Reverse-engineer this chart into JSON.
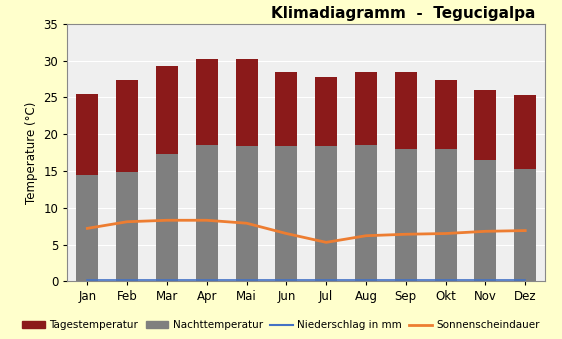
{
  "months": [
    "Jan",
    "Feb",
    "Mar",
    "Apr",
    "Mai",
    "Jun",
    "Jul",
    "Aug",
    "Sep",
    "Okt",
    "Nov",
    "Dez"
  ],
  "nacht_temp": [
    14.5,
    14.8,
    17.3,
    18.5,
    18.4,
    18.4,
    18.4,
    18.5,
    18.0,
    18.0,
    16.5,
    15.2
  ],
  "tages_temp": [
    25.5,
    27.4,
    29.3,
    30.2,
    30.2,
    28.5,
    27.8,
    28.5,
    28.5,
    27.3,
    26.0,
    25.3
  ],
  "niederschlag": [
    0.2,
    0.2,
    0.2,
    0.2,
    0.2,
    0.2,
    0.2,
    0.2,
    0.2,
    0.2,
    0.2,
    0.2
  ],
  "sonnenschein": [
    7.2,
    8.1,
    8.3,
    8.3,
    7.9,
    6.5,
    5.3,
    6.2,
    6.4,
    6.5,
    6.8,
    6.9
  ],
  "bar_color_nacht": "#7F7F7F",
  "bar_color_tages": "#8B1A1A",
  "line_color_niederschlag": "#4472C4",
  "line_color_sonnenschein": "#ED7D31",
  "title": "Klimadiagramm  -  Tegucigalpa",
  "ylabel": "Temperature (°C)",
  "ylim": [
    0,
    35
  ],
  "yticks": [
    0,
    5,
    10,
    15,
    20,
    25,
    30,
    35
  ],
  "background_color": "#FFFFCC",
  "plot_bg_color": "#EFEFEF",
  "title_fontsize": 11,
  "bar_width": 0.55,
  "legend_labels": [
    "Tagestemperatur",
    "Nachttemperatur",
    "Niederschlag in mm",
    "Sonnenscheindauer"
  ]
}
